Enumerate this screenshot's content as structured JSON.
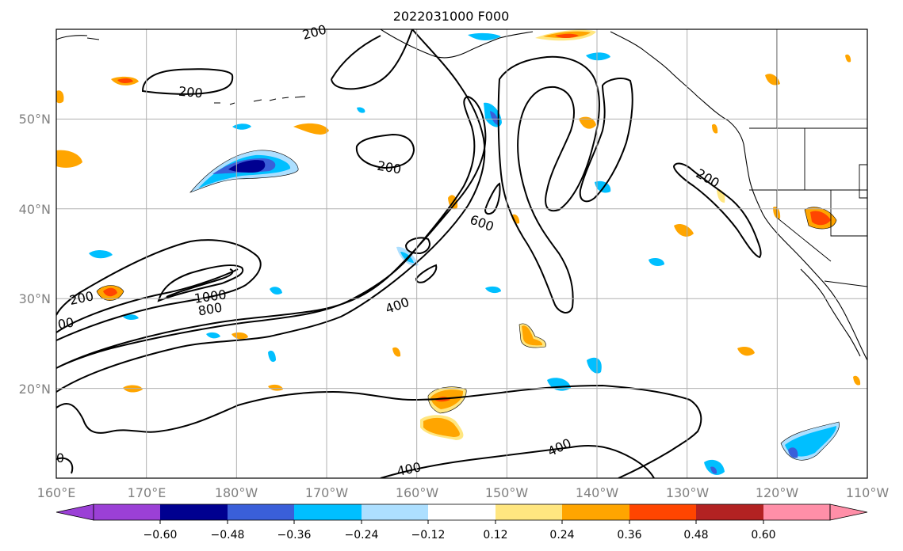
{
  "title": "2022031000 F000",
  "map": {
    "lon_range": [
      160,
      250
    ],
    "lat_range": [
      10,
      60
    ],
    "lon_ticks": [
      "160°E",
      "170°E",
      "180°W",
      "170°W",
      "160°W",
      "150°W",
      "140°W",
      "130°W",
      "120°W",
      "110°W"
    ],
    "lat_ticks": [
      "20°N",
      "30°N",
      "40°N",
      "50°N"
    ],
    "grid": true,
    "contour_labels": [
      "200",
      "200",
      "200",
      "200",
      "200",
      "600",
      "1000",
      "800",
      "400",
      "400",
      "400",
      "00",
      "0"
    ]
  },
  "colorbar": {
    "orientation": "horizontal",
    "extend": "both",
    "tick_labels": [
      "−0.60",
      "−0.48",
      "−0.36",
      "−0.24",
      "−0.12",
      "0.12",
      "0.24",
      "0.36",
      "0.48",
      "0.60"
    ],
    "colors": [
      "#9b40d6",
      "#000090",
      "#3a5fd9",
      "#00bfff",
      "#addfff",
      "#ffffff",
      "#ffe680",
      "#ffa500",
      "#ff4500",
      "#b22222",
      "#ff8fa8"
    ]
  }
}
